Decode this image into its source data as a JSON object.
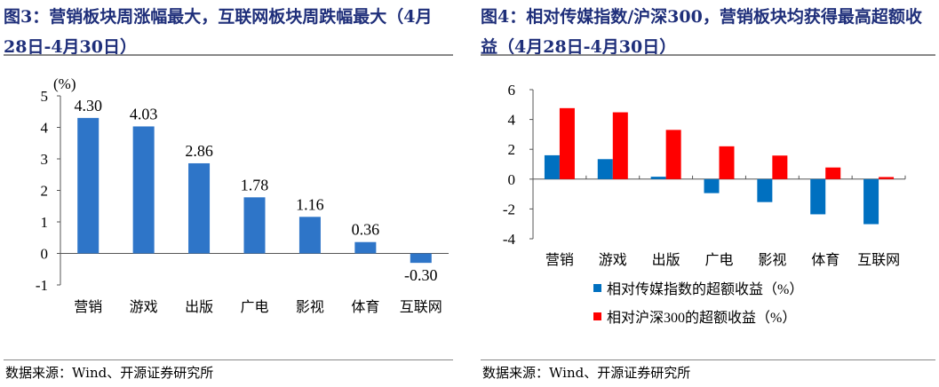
{
  "left": {
    "title": "图3：营销板块周涨幅最大，互联网板块周跌幅最大（4月28日-4月30日）",
    "source": "数据来源：Wind、开源证券研究所"
  },
  "right": {
    "title": "图4：相对传媒指数/沪深300，营销板块均获得最高超额收益（4月28日-4月30日）",
    "source": "数据来源：Wind、开源证券研究所"
  },
  "chart_data": [
    {
      "type": "bar",
      "ylabel": "(%)",
      "categories": [
        "营销",
        "游戏",
        "出版",
        "广电",
        "影视",
        "体育",
        "互联网"
      ],
      "values": [
        4.3,
        4.03,
        2.86,
        1.78,
        1.16,
        0.36,
        -0.3
      ],
      "data_labels": [
        "4.30",
        "4.03",
        "2.86",
        "1.78",
        "1.16",
        "0.36",
        "-0.30"
      ],
      "ylim": [
        -1,
        5
      ],
      "yticks": [
        -1,
        0,
        1,
        2,
        3,
        4,
        5
      ],
      "color": "#2e75c8",
      "grid": false
    },
    {
      "type": "bar",
      "categories": [
        "营销",
        "游戏",
        "出版",
        "广电",
        "影视",
        "体育",
        "互联网"
      ],
      "series": [
        {
          "name": "相对传媒指数的超额收益（%）",
          "values": [
            1.6,
            1.34,
            0.16,
            -0.94,
            -1.54,
            -2.36,
            -3.02
          ],
          "color": "#0070c0"
        },
        {
          "name": "相对沪深300的超额收益（%）",
          "values": [
            4.76,
            4.48,
            3.3,
            2.2,
            1.58,
            0.78,
            0.14
          ],
          "color": "#ff0000"
        }
      ],
      "ylim": [
        -4,
        6
      ],
      "yticks": [
        -4,
        -2,
        0,
        2,
        4,
        6
      ],
      "legend": "bottom",
      "grid": false
    }
  ]
}
